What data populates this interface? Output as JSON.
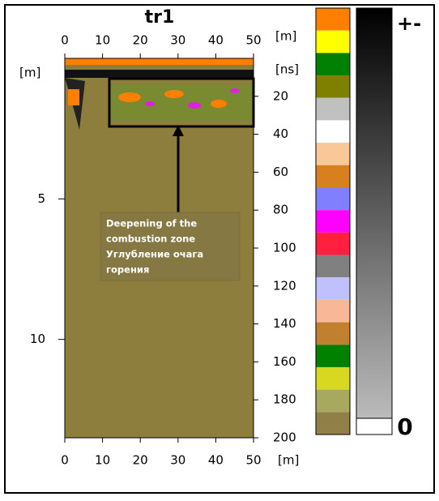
{
  "chart_data": {
    "type": "radargram",
    "title": "tr1",
    "x_label": "[m]",
    "y_label": "[m]",
    "y2_label": "[ns]",
    "xlim": [
      0,
      50
    ],
    "xticks": [
      0,
      10,
      20,
      30,
      40,
      50
    ],
    "ylim": [
      0,
      13.5
    ],
    "yticks": [
      5,
      10
    ],
    "y2lim": [
      0,
      200
    ],
    "y2ticks": [
      20,
      40,
      60,
      80,
      100,
      120,
      140,
      160,
      180,
      200
    ],
    "annotation": [
      "Deepening of the",
      "combustion zone",
      "Углубление очага",
      "горения"
    ],
    "colorbar_colors": [
      "#ff8000",
      "#ffff00",
      "#008000",
      "#808000",
      "#c0c0c0",
      "#ffffff",
      "#f8c898",
      "#d88020",
      "#8080ff",
      "#ff00ff",
      "#ff2040",
      "#808080",
      "#c0c0ff",
      "#f8b898",
      "#c08030",
      "#008000",
      "#d8d820",
      "#a8a860",
      "#908048"
    ],
    "grayscale_labels": [
      "+-",
      "0"
    ]
  }
}
